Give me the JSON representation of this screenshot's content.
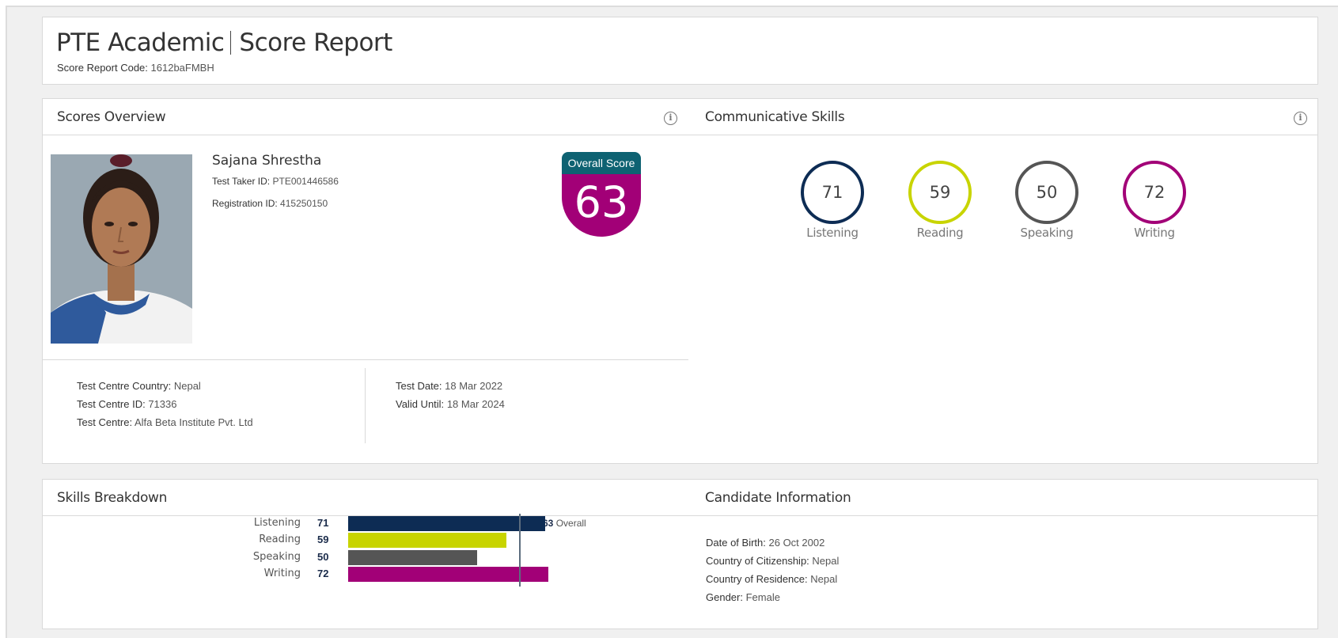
{
  "header": {
    "product": "PTE Academic",
    "report": "Score Report",
    "code_label": "Score Report Code:",
    "code_value": "1612baFMBH"
  },
  "overview": {
    "title": "Scores Overview",
    "candidate": {
      "name": "Sajana Shrestha",
      "taker_id_label": "Test Taker ID:",
      "taker_id": "PTE001446586",
      "reg_id_label": "Registration ID:",
      "reg_id": "415250150"
    },
    "overall": {
      "label": "Overall Score",
      "value": "63"
    },
    "centre": {
      "country_label": "Test Centre Country:",
      "country": "Nepal",
      "id_label": "Test Centre ID:",
      "id": "71336",
      "name_label": "Test Centre:",
      "name": "Alfa Beta Institute Pvt. Ltd"
    },
    "dates": {
      "test_label": "Test Date:",
      "test": "18 Mar 2022",
      "valid_label": "Valid Until:",
      "valid": "18 Mar 2024"
    }
  },
  "communicative": {
    "title": "Communicative Skills",
    "skills": [
      {
        "name": "Listening",
        "score": "71",
        "color": "#0d2c54"
      },
      {
        "name": "Reading",
        "score": "59",
        "color": "#c8d400"
      },
      {
        "name": "Speaking",
        "score": "50",
        "color": "#555555"
      },
      {
        "name": "Writing",
        "score": "72",
        "color": "#a20077"
      }
    ]
  },
  "breakdown": {
    "title": "Skills Breakdown",
    "overall_value": "63",
    "overall_label": "Overall",
    "rows": [
      {
        "name": "Listening",
        "score": 71,
        "color": "#0d2c54"
      },
      {
        "name": "Reading",
        "score": 59,
        "color": "#c8d400"
      },
      {
        "name": "Speaking",
        "score": 50,
        "color": "#555555"
      },
      {
        "name": "Writing",
        "score": 72,
        "color": "#a20077"
      }
    ]
  },
  "candidate_info": {
    "title": "Candidate Information",
    "dob_label": "Date of Birth:",
    "dob": "26 Oct 2002",
    "citizenship_label": "Country of Citizenship:",
    "citizenship": "Nepal",
    "residence_label": "Country of Residence:",
    "residence": "Nepal",
    "gender_label": "Gender:",
    "gender": "Female"
  }
}
